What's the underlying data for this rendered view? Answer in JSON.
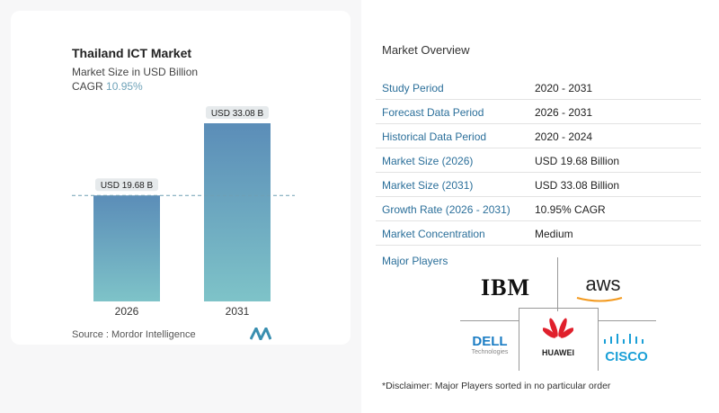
{
  "header": {
    "title": "Thailand ICT Market",
    "subtitle": "Market Size in USD Billion",
    "cagr_label": "CAGR",
    "cagr_value": "10.95%"
  },
  "chart_data": {
    "type": "bar",
    "categories": [
      "2026",
      "2031"
    ],
    "values": [
      19.68,
      33.08
    ],
    "data_labels": [
      "USD 19.68 B",
      "USD 33.08 B"
    ],
    "title": "Thailand ICT Market",
    "ylabel": "Market Size in USD Billion",
    "ylim": [
      0,
      40
    ],
    "grid": false,
    "bar_color_top": "#5b8db8",
    "bar_color_bottom": "#7ec3c8"
  },
  "source": "Source :  Mordor Intelligence",
  "overview": {
    "title": "Market Overview",
    "rows": [
      {
        "label": "Study Period",
        "value": "2020 - 2031"
      },
      {
        "label": "Forecast Data Period",
        "value": "2026 - 2031"
      },
      {
        "label": "Historical Data Period",
        "value": "2020 - 2024"
      },
      {
        "label": "Market Size (2026)",
        "value": "USD 19.68 Billion"
      },
      {
        "label": "Market Size (2031)",
        "value": "USD 33.08 Billion"
      },
      {
        "label": "Growth Rate (2026 - 2031)",
        "value": "10.95% CAGR"
      },
      {
        "label": "Market Concentration",
        "value": "Medium"
      }
    ]
  },
  "players": {
    "title": "Major Players",
    "logos": [
      "IBM",
      "aws",
      "DELL Technologies",
      "HUAWEI",
      "CISCO"
    ]
  },
  "disclaimer": "*Disclaimer: Major Players sorted in no particular order"
}
